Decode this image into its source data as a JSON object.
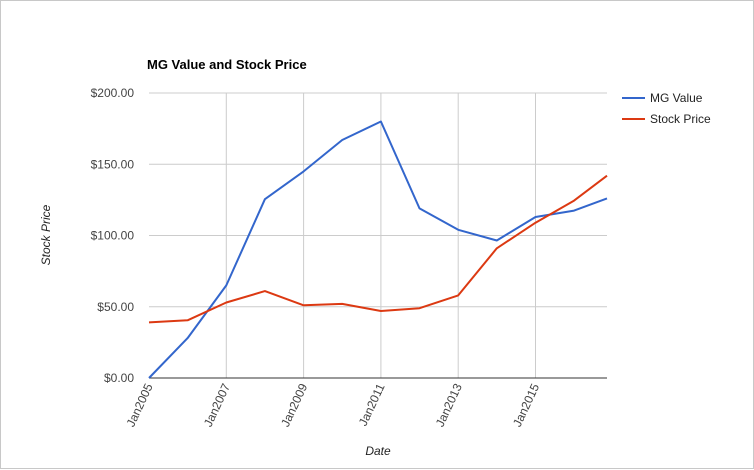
{
  "chart_data": {
    "type": "line",
    "title": "MG Value and Stock Price",
    "xlabel": "Date",
    "ylabel": "Stock Price",
    "x": [
      2005,
      2006,
      2007,
      2008,
      2009,
      2010,
      2011,
      2012,
      2013,
      2014,
      2015,
      2016,
      2016.85
    ],
    "x_range": [
      2005,
      2016.85
    ],
    "x_ticks": [
      2005,
      2007,
      2009,
      2011,
      2013,
      2015
    ],
    "x_tick_labels": [
      "Jan2005",
      "Jan2007",
      "Jan2009",
      "Jan2011",
      "Jan2013",
      "Jan2015"
    ],
    "ylim": [
      0,
      200
    ],
    "y_ticks": [
      0,
      50,
      100,
      150,
      200
    ],
    "y_tick_labels": [
      "$0.00",
      "$50.00",
      "$100.00",
      "$150.00",
      "$200.00"
    ],
    "grid": true,
    "legend_position": "right",
    "series": [
      {
        "name": "MG Value",
        "color": "#3366cc",
        "values": [
          0,
          28,
          65,
          125.5,
          145,
          167,
          180,
          119,
          104,
          96.5,
          113,
          117.5,
          126
        ]
      },
      {
        "name": "Stock Price",
        "color": "#dc3912",
        "values": [
          39,
          40.5,
          53,
          61,
          51,
          52,
          47,
          49,
          58,
          91,
          109,
          124.5,
          142
        ]
      }
    ]
  }
}
